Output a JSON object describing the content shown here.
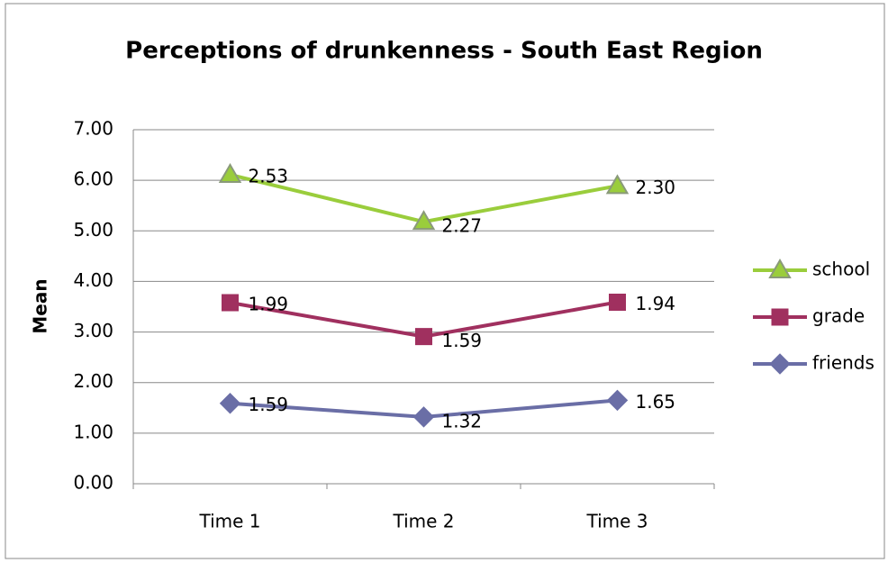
{
  "chart_data": {
    "type": "line",
    "stacked": true,
    "title": "Perceptions of drunkenness - South East Region",
    "ylabel": "Mean",
    "categories": [
      "Time 1",
      "Time 2",
      "Time 3"
    ],
    "series": [
      {
        "name": "school",
        "color": "#9acd3c",
        "marker": "triangle",
        "values": [
          2.53,
          2.27,
          2.3
        ],
        "value_labels": [
          "2.53",
          "2.27",
          "2.30"
        ]
      },
      {
        "name": "grade",
        "color": "#a0305f",
        "marker": "square",
        "values": [
          1.99,
          1.59,
          1.94
        ],
        "value_labels": [
          "1.99",
          "1.59",
          "1.94"
        ]
      },
      {
        "name": "friends",
        "color": "#6a6ea6",
        "marker": "diamond",
        "values": [
          1.59,
          1.32,
          1.65
        ],
        "value_labels": [
          "1.59",
          "1.32",
          "1.65"
        ]
      }
    ],
    "ylim": [
      0,
      7
    ],
    "yticks": [
      {
        "value": 0,
        "label": "0.00"
      },
      {
        "value": 1,
        "label": "1.00"
      },
      {
        "value": 2,
        "label": "2.00"
      },
      {
        "value": 3,
        "label": "3.00"
      },
      {
        "value": 4,
        "label": "4.00"
      },
      {
        "value": 5,
        "label": "5.00"
      },
      {
        "value": 6,
        "label": "6.00"
      },
      {
        "value": 7,
        "label": "7.00"
      }
    ],
    "grid": true,
    "legend": "right"
  }
}
